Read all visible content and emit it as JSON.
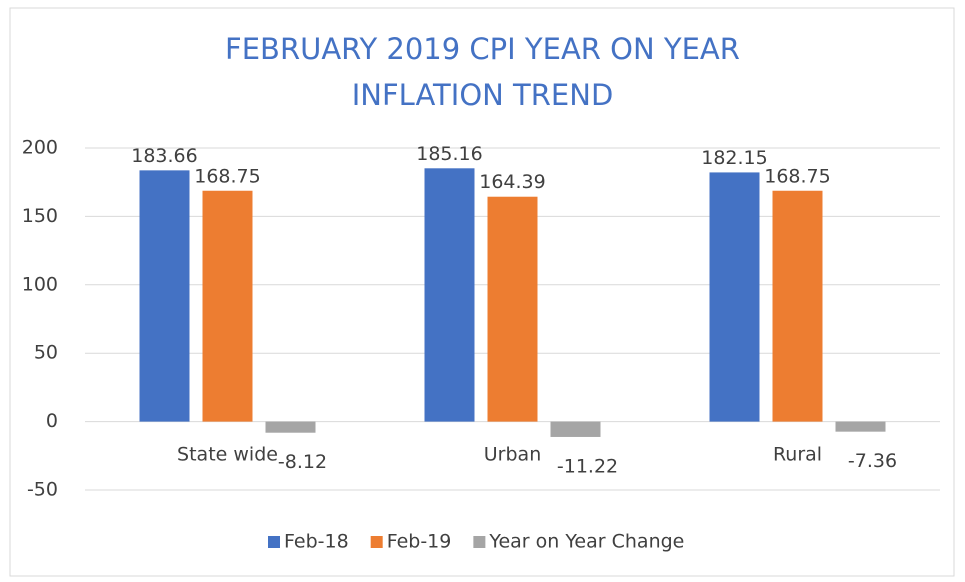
{
  "chart_data": {
    "type": "bar",
    "title": "FEBRUARY 2019 CPI YEAR ON YEAR INFLATION TREND",
    "categories": [
      "State wide",
      "Urban",
      "Rural"
    ],
    "series": [
      {
        "name": "Feb-18",
        "color": "#4472c4",
        "values": [
          183.66,
          185.16,
          182.15
        ]
      },
      {
        "name": "Feb-19",
        "color": "#ed7d31",
        "values": [
          168.75,
          164.39,
          168.75
        ]
      },
      {
        "name": "Year on Year Change",
        "color": "#a5a5a5",
        "values": [
          -8.12,
          -11.22,
          -7.36
        ]
      }
    ],
    "ylim": [
      -50,
      200
    ],
    "yticks": [
      -50,
      0,
      50,
      100,
      150,
      200
    ],
    "grid": true,
    "legend": "bottom"
  }
}
